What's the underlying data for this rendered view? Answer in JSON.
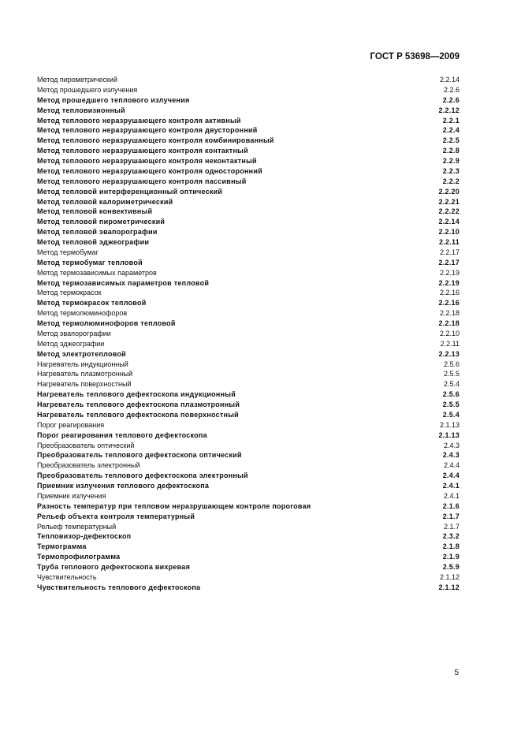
{
  "header": {
    "doc_id": "ГОСТ Р 53698—2009"
  },
  "index": [
    {
      "term": "Метод пирометрический",
      "ref": "2.2.14",
      "bold": false
    },
    {
      "term": "Метод прошедшего излучения",
      "ref": "2.2.6",
      "bold": false
    },
    {
      "term": "Метод прошедшего теплового излучения",
      "ref": "2.2.6",
      "bold": true
    },
    {
      "term": "Метод тепловизионный",
      "ref": "2.2.12",
      "bold": true
    },
    {
      "term": "Метод теплового неразрушающего контроля активный",
      "ref": "2.2.1",
      "bold": true
    },
    {
      "term": "Метод теплового неразрушающего контроля двусторонний",
      "ref": "2.2.4",
      "bold": true
    },
    {
      "term": "Метод теплового неразрушающего контроля комбинированный",
      "ref": "2.2.5",
      "bold": true
    },
    {
      "term": "Метод теплового неразрушающего контроля контактный",
      "ref": "2.2.8",
      "bold": true
    },
    {
      "term": "Метод теплового неразрушающего контроля неконтактный",
      "ref": "2.2.9",
      "bold": true
    },
    {
      "term": "Метод теплового неразрушающего контроля односторонний",
      "ref": "2.2.3",
      "bold": true
    },
    {
      "term": "Метод теплового неразрушающего контроля пассивный",
      "ref": "2.2.2",
      "bold": true
    },
    {
      "term": "Метод тепловой интерференционный оптический",
      "ref": "2.2.20",
      "bold": true
    },
    {
      "term": "Метод тепловой калориметрический",
      "ref": "2.2.21",
      "bold": true
    },
    {
      "term": "Метод тепловой конвективный",
      "ref": "2.2.22",
      "bold": true
    },
    {
      "term": "Метод тепловой пирометрический",
      "ref": "2.2.14",
      "bold": true
    },
    {
      "term": "Метод тепловой эвапорографии",
      "ref": "2.2.10",
      "bold": true
    },
    {
      "term": "Метод тепловой эджеографии",
      "ref": "2.2.11",
      "bold": true
    },
    {
      "term": "Метод термобумаг",
      "ref": "2.2.17",
      "bold": false
    },
    {
      "term": "Метод термобумаг тепловой",
      "ref": "2.2.17",
      "bold": true
    },
    {
      "term": "Метод термозависимых параметров",
      "ref": "2.2.19",
      "bold": false
    },
    {
      "term": "Метод термозависимых параметров тепловой",
      "ref": "2.2.19",
      "bold": true
    },
    {
      "term": "Метод термокрасок",
      "ref": "2.2.16",
      "bold": false
    },
    {
      "term": "Метод термокрасок тепловой",
      "ref": "2.2.16",
      "bold": true
    },
    {
      "term": "Метод термолюминофоров",
      "ref": "2.2.18",
      "bold": false
    },
    {
      "term": "Метод термолюминофоров тепловой",
      "ref": "2.2.18",
      "bold": true
    },
    {
      "term": "Метод эвапорографии",
      "ref": "2.2.10",
      "bold": false
    },
    {
      "term": "Метод эджеографии",
      "ref": "2.2.11",
      "bold": false
    },
    {
      "term": "Метод электротепловой",
      "ref": "2.2.13",
      "bold": true
    },
    {
      "term": "Нагреватель индукционный",
      "ref": "2.5.6",
      "bold": false
    },
    {
      "term": "Нагреватель плазмотронный",
      "ref": "2.5.5",
      "bold": false
    },
    {
      "term": "Нагреватель поверхностный",
      "ref": "2.5.4",
      "bold": false
    },
    {
      "term": "Нагреватель теплового дефектоскопа индукционный",
      "ref": "2.5.6",
      "bold": true
    },
    {
      "term": "Нагреватель теплового дефектоскопа плазмотронный",
      "ref": "2.5.5",
      "bold": true
    },
    {
      "term": "Нагреватель теплового дефектоскопа поверхностный",
      "ref": "2.5.4",
      "bold": true
    },
    {
      "term": "Порог реагирования",
      "ref": "2.1.13",
      "bold": false
    },
    {
      "term": "Порог реагирования теплового дефектоскопа",
      "ref": "2.1.13",
      "bold": true
    },
    {
      "term": "Преобразователь оптический",
      "ref": "2.4.3",
      "bold": false
    },
    {
      "term": "Преобразователь теплового дефектоскопа оптический",
      "ref": "2.4.3",
      "bold": true
    },
    {
      "term": "Преобразователь электронный",
      "ref": "2.4.4",
      "bold": false
    },
    {
      "term": "Преобразователь теплового дефектоскопа электронный",
      "ref": "2.4.4",
      "bold": true
    },
    {
      "term": "Приемник излучения теплового дефектоскопа",
      "ref": "2.4.1",
      "bold": true
    },
    {
      "term": "Приемник излучения",
      "ref": "2.4.1",
      "bold": false
    },
    {
      "term": "Разность температур при тепловом неразрушающем контроле пороговая",
      "ref": "2.1.6",
      "bold": true
    },
    {
      "term": "Рельеф объекта контроля температурный",
      "ref": "2.1.7",
      "bold": true
    },
    {
      "term": "Рельеф температурный",
      "ref": "2.1.7",
      "bold": false
    },
    {
      "term": "Тепловизор-дефектоскоп",
      "ref": "2.3.2",
      "bold": true
    },
    {
      "term": "Термограмма",
      "ref": "2.1.8",
      "bold": true
    },
    {
      "term": "Термопрофилограмма",
      "ref": "2.1.9",
      "bold": true
    },
    {
      "term": "Труба теплового дефектоскопа вихревая",
      "ref": "2.5.9",
      "bold": true
    },
    {
      "term": "Чувствительность",
      "ref": "2.1.12",
      "bold": false
    },
    {
      "term": "Чувствительность теплового дефектоскопа",
      "ref": "2.1.12",
      "bold": true
    }
  ],
  "footer": {
    "page_number": "5"
  }
}
